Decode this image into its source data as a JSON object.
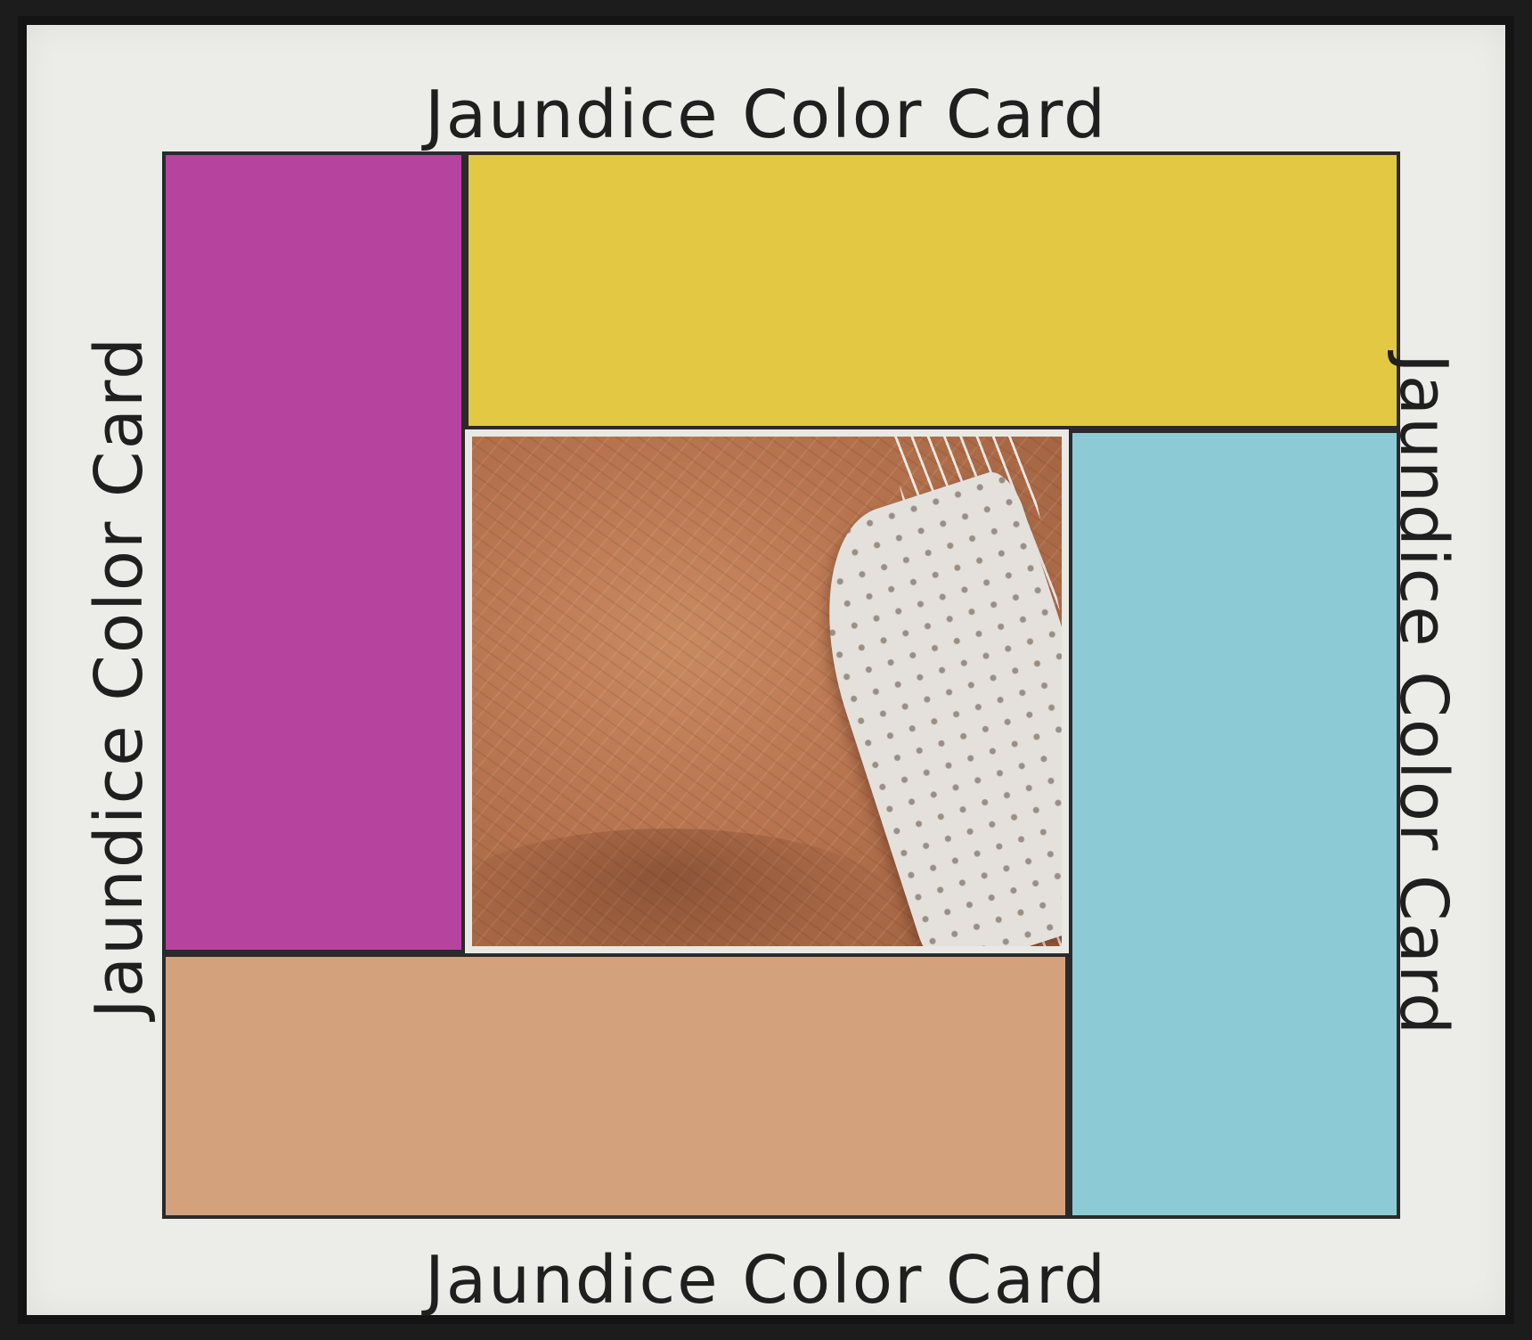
{
  "card": {
    "label_top": "Jaundice Color Card",
    "label_bottom": "Jaundice Color Card",
    "label_left": "Jaundice Color Card",
    "label_right": "Jaundice Color Card"
  },
  "swatches": {
    "magenta": "#b6439e",
    "yellow": "#e3c843",
    "cyan": "#8ccbd6",
    "beige": "#d3a27d"
  }
}
